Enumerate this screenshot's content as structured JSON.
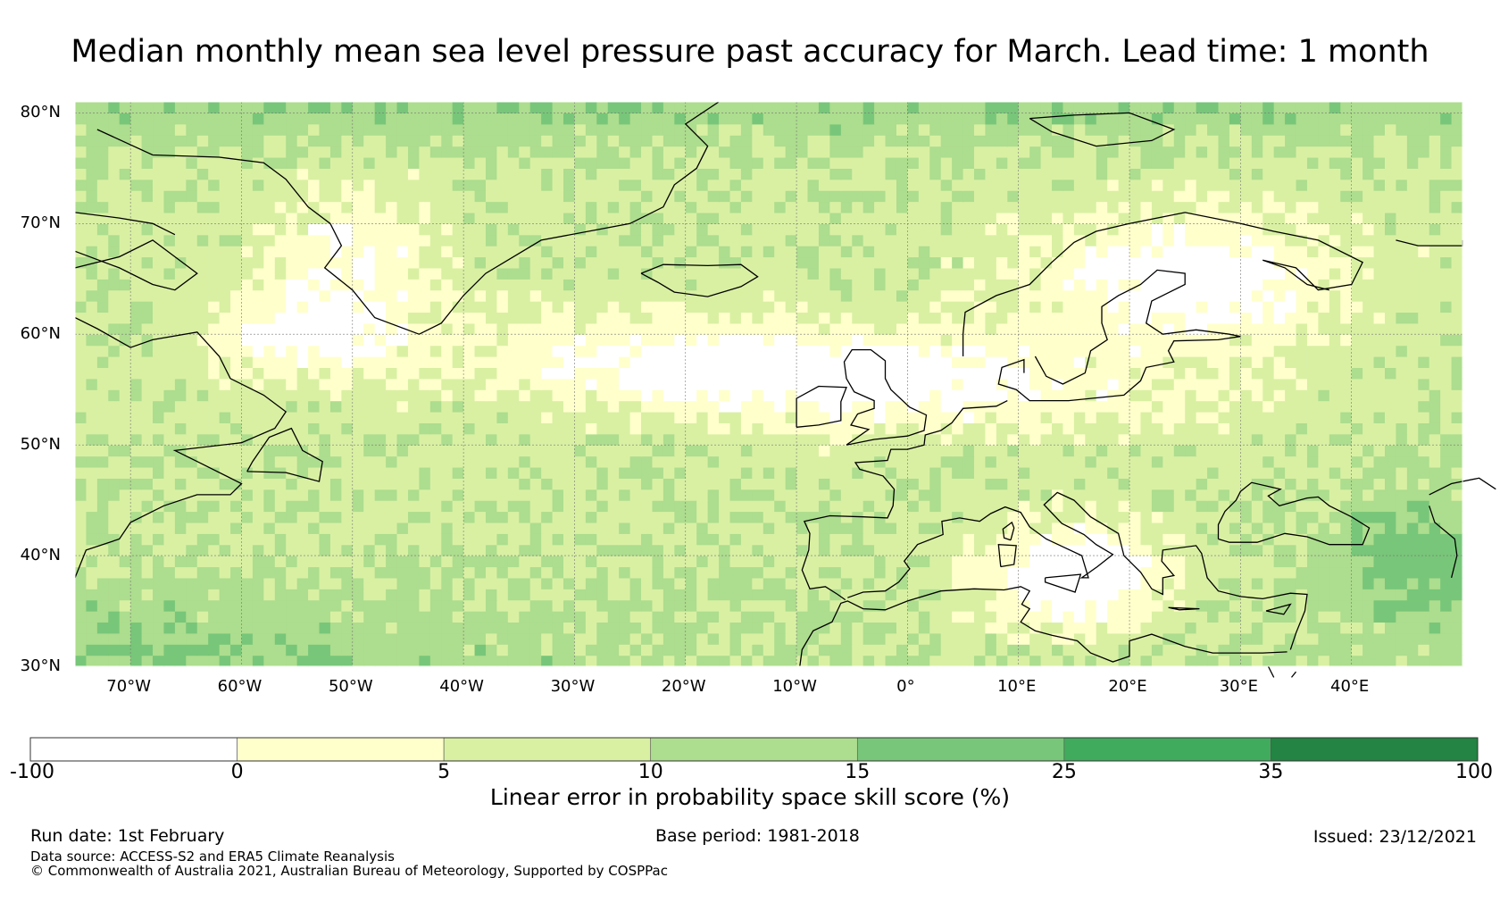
{
  "title": "Median monthly mean sea level pressure past accuracy for March. Lead time: 1 month",
  "chart_data": {
    "type": "heatmap",
    "title": "Median monthly mean sea level pressure past accuracy for March. Lead time: 1 month",
    "lon_range": [
      -75,
      50
    ],
    "lat_range": [
      30,
      81
    ],
    "lat_ticks": [
      "30°N",
      "40°N",
      "50°N",
      "60°N",
      "70°N",
      "80°N"
    ],
    "lon_ticks": [
      "70°W",
      "60°W",
      "50°W",
      "40°W",
      "30°W",
      "20°W",
      "10°W",
      "0°",
      "10°E",
      "20°E",
      "30°E",
      "40°E"
    ],
    "colorbar": {
      "label": "Linear error in probability space skill score (%)",
      "boundaries": [
        -100,
        0,
        5,
        10,
        15,
        25,
        35,
        100
      ],
      "tick_labels": [
        "-100",
        "0",
        "5",
        "10",
        "15",
        "25",
        "35",
        "100"
      ],
      "colors": [
        "#ffffff",
        "#ffffcc",
        "#d9f0a3",
        "#addd8e",
        "#78c679",
        "#41ab5d",
        "#238443"
      ]
    }
  },
  "footer": {
    "run_date": "Run date: 1st February",
    "base_period": "Base period: 1981-2018",
    "issued": "Issued: 23/12/2021",
    "data_source": "Data source: ACCESS-S2 and ERA5 Climate Reanalysis",
    "copyright": "© Commonwealth of Australia 2021, Australian Bureau of Meteorology, Supported by COSPPac"
  }
}
